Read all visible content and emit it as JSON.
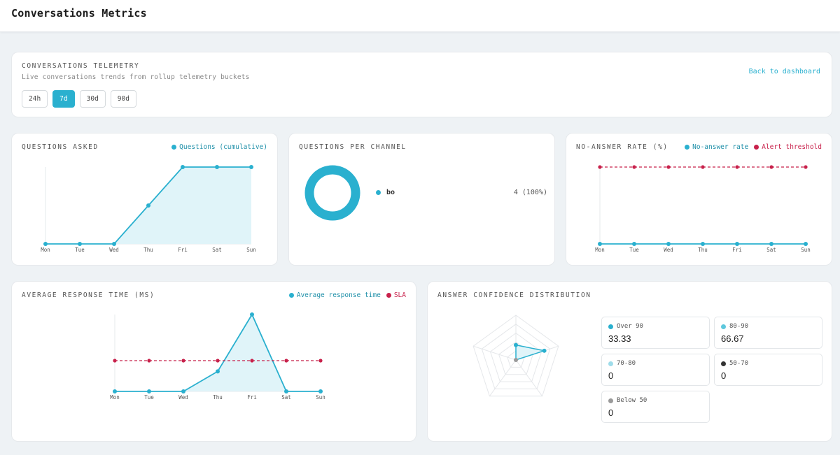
{
  "page": {
    "title": "Conversations Metrics"
  },
  "header_card": {
    "title": "CONVERSATIONS TELEMETRY",
    "subtitle": "Live conversations trends from rollup telemetry buckets",
    "back_label": "Back to dashboard",
    "ranges": [
      {
        "label": "24h",
        "active": false
      },
      {
        "label": "7d",
        "active": true
      },
      {
        "label": "30d",
        "active": false
      },
      {
        "label": "90d",
        "active": false
      }
    ]
  },
  "colors": {
    "accent": "#2ab0cf",
    "alert": "#c8214b",
    "fill": "#e0f4f9",
    "grid": "#e5e8eb"
  },
  "questions_asked": {
    "title": "QUESTIONS ASKED",
    "legend": [
      "Questions (cumulative)"
    ]
  },
  "questions_per_channel": {
    "title": "QUESTIONS PER CHANNEL",
    "rows": [
      {
        "name": "bo",
        "value": "4 (100%)"
      }
    ]
  },
  "no_answer_rate": {
    "title": "NO-ANSWER RATE (%)",
    "legend": [
      "No-answer rate",
      "Alert threshold"
    ]
  },
  "avg_response_time": {
    "title": "AVERAGE RESPONSE TIME (MS)",
    "legend": [
      "Average response time",
      "SLA"
    ]
  },
  "answer_confidence": {
    "title": "ANSWER CONFIDENCE DISTRIBUTION",
    "buckets": [
      {
        "label": "Over 90",
        "value": "33.33",
        "color": "#2ab0cf"
      },
      {
        "label": "80-90",
        "value": "66.67",
        "color": "#5ec8dd"
      },
      {
        "label": "70-80",
        "value": "0",
        "color": "#9fdcea"
      },
      {
        "label": "50-70",
        "value": "0",
        "color": "#333333"
      },
      {
        "label": "Below 50",
        "value": "0",
        "color": "#9a9a9a"
      }
    ]
  },
  "chart_data": [
    {
      "type": "area",
      "title": "QUESTIONS ASKED",
      "categories": [
        "Mon",
        "Tue",
        "Wed",
        "Thu",
        "Fri",
        "Sat",
        "Sun"
      ],
      "series": [
        {
          "name": "Questions (cumulative)",
          "values": [
            0,
            0,
            0,
            2,
            4,
            4,
            4
          ]
        }
      ],
      "ylim": [
        0,
        4
      ],
      "grid": false,
      "legend": "top-right"
    },
    {
      "type": "pie",
      "title": "QUESTIONS PER CHANNEL",
      "categories": [
        "bo"
      ],
      "values": [
        4
      ],
      "legend": "right"
    },
    {
      "type": "line",
      "title": "NO-ANSWER RATE (%)",
      "categories": [
        "Mon",
        "Tue",
        "Wed",
        "Thu",
        "Fri",
        "Sat",
        "Sun"
      ],
      "series": [
        {
          "name": "No-answer rate",
          "values": [
            0,
            0,
            0,
            0,
            0,
            0,
            0
          ]
        },
        {
          "name": "Alert threshold",
          "values": [
            1,
            1,
            1,
            1,
            1,
            1,
            1
          ]
        }
      ],
      "ylim": [
        0,
        1
      ],
      "grid": false,
      "legend": "top-right"
    },
    {
      "type": "area",
      "title": "AVERAGE RESPONSE TIME (MS)",
      "categories": [
        "Mon",
        "Tue",
        "Wed",
        "Thu",
        "Fri",
        "Sat",
        "Sun"
      ],
      "series": [
        {
          "name": "Average response time",
          "values": [
            0,
            0,
            0,
            2600,
            10000,
            0,
            0
          ]
        },
        {
          "name": "SLA",
          "values": [
            4000,
            4000,
            4000,
            4000,
            4000,
            4000,
            4000
          ]
        }
      ],
      "ylim": [
        0,
        10000
      ],
      "grid": false,
      "legend": "top-right"
    },
    {
      "type": "radar",
      "title": "ANSWER CONFIDENCE DISTRIBUTION",
      "categories": [
        "Over 90",
        "80-90",
        "70-80",
        "50-70",
        "Below 50"
      ],
      "values": [
        33.33,
        66.67,
        0,
        0,
        0
      ],
      "ylim": [
        0,
        100
      ]
    }
  ]
}
